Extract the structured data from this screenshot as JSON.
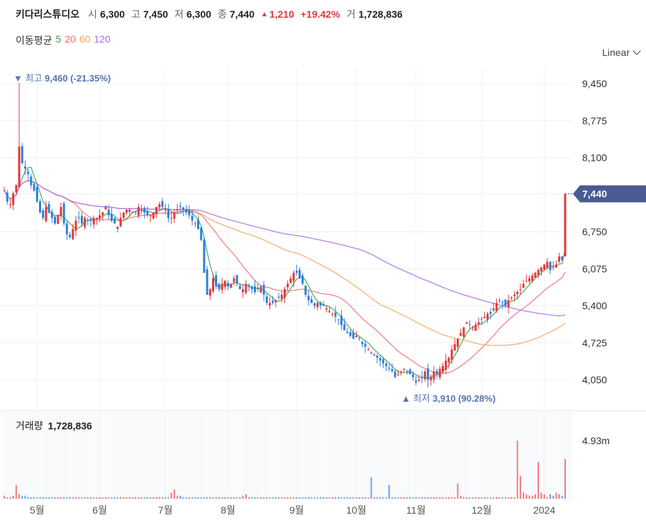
{
  "header": {
    "stock_name": "키다리스튜디오",
    "open_label": "시",
    "open_value": "6,300",
    "high_label": "고",
    "high_value": "7,450",
    "low_label": "저",
    "low_value": "6,300",
    "close_label": "종",
    "close_value": "7,440",
    "change_arrow": "▲",
    "change_value": "1,210",
    "change_pct": "+19.42%",
    "volume_label": "거",
    "volume_value": "1,728,836"
  },
  "moving_average": {
    "label": "이동평균",
    "periods": [
      {
        "value": "5",
        "color": "#3aa34a"
      },
      {
        "value": "20",
        "color": "#f06e6e"
      },
      {
        "value": "60",
        "color": "#f4a45d"
      },
      {
        "value": "120",
        "color": "#a66cf0"
      }
    ]
  },
  "scale_mode": "Linear",
  "annotations": {
    "high_text": "▼ 최고",
    "high_value": "9,460 (-21.35%)",
    "low_text": "▲ 최저",
    "low_value": "3,910 (90.28%)"
  },
  "volume_panel": {
    "label": "거래량",
    "value": "1,728,836",
    "axis_tick": "4.93m"
  },
  "colors": {
    "up": "#e0393e",
    "down": "#2f7fd8",
    "current_tag": "#4a5b94",
    "annotation": "#5a72b5"
  },
  "chart_data": {
    "type": "candlestick",
    "y_ticks": [
      "9,450",
      "8,775",
      "8,100",
      "7,440",
      "6,750",
      "6,075",
      "5,400",
      "4,725",
      "4,050"
    ],
    "y_tick_values": [
      9450,
      8775,
      8100,
      7440,
      6750,
      6075,
      5400,
      4725,
      4050
    ],
    "ylim": [
      3600,
      9800
    ],
    "x_ticks": [
      "5월",
      "6월",
      "7월",
      "8월",
      "9월",
      "10월",
      "11월",
      "12월",
      "2024"
    ],
    "x_tick_index": [
      11,
      32,
      54,
      75,
      98,
      118,
      138,
      160,
      181
    ],
    "current_price": 7440,
    "high_index": 5,
    "high_value": 9460,
    "low_index": 142,
    "low_value": 3910,
    "closes": [
      7500,
      7300,
      7250,
      7450,
      7600,
      8300,
      8000,
      7900,
      7800,
      7600,
      7500,
      7300,
      7100,
      7000,
      7200,
      7100,
      7000,
      6900,
      7050,
      7200,
      6900,
      6700,
      6650,
      6800,
      6950,
      7000,
      6900,
      7000,
      6950,
      6950,
      7000,
      7000,
      7050,
      7100,
      7200,
      7050,
      6950,
      6900,
      6800,
      7000,
      7100,
      7150,
      7150,
      7100,
      7100,
      7200,
      7150,
      7100,
      7050,
      7050,
      7100,
      7200,
      7250,
      7200,
      7150,
      7000,
      7000,
      7100,
      7150,
      7200,
      7150,
      7100,
      7050,
      6950,
      6900,
      6800,
      6600,
      6000,
      5600,
      5700,
      5900,
      5750,
      5700,
      5800,
      5850,
      5750,
      5800,
      5900,
      5800,
      5700,
      5700,
      5800,
      5750,
      5700,
      5650,
      5700,
      5750,
      5600,
      5450,
      5450,
      5450,
      5500,
      5550,
      5600,
      5700,
      5800,
      5900,
      6000,
      6000,
      5900,
      5800,
      5600,
      5500,
      5450,
      5400,
      5450,
      5400,
      5400,
      5350,
      5300,
      5250,
      5200,
      5150,
      5050,
      4950,
      4900,
      4850,
      4800,
      4850,
      4800,
      4700,
      4650,
      4600,
      4550,
      4500,
      4450,
      4400,
      4350,
      4300,
      4250,
      4200,
      4100,
      4150,
      4200,
      4250,
      4200,
      4150,
      4100,
      4000,
      4050,
      4100,
      4200,
      4050,
      4100,
      4200,
      4150,
      4250,
      4300,
      4400,
      4450,
      4600,
      4700,
      4800,
      4900,
      5000,
      5100,
      5050,
      5000,
      5050,
      5100,
      5150,
      5200,
      5250,
      5250,
      5350,
      5450,
      5500,
      5450,
      5400,
      5500,
      5550,
      5600,
      5650,
      5700,
      5800,
      5850,
      5900,
      5950,
      6000,
      6050,
      6100,
      6150,
      6200,
      6050,
      6100,
      6150,
      6300,
      6230,
      7440
    ],
    "volume_pct": [
      2,
      1,
      1,
      2,
      2,
      9,
      3,
      2,
      2,
      1,
      1,
      1,
      1,
      1,
      1,
      1,
      1,
      1,
      1,
      1,
      1,
      1,
      1,
      1,
      1,
      1,
      1,
      1,
      1,
      1,
      1,
      1,
      1,
      1,
      1,
      1,
      1,
      1,
      1,
      1,
      1,
      1,
      1,
      1,
      1,
      1,
      1,
      1,
      1,
      1,
      1,
      1,
      1,
      1,
      1,
      1,
      1,
      1,
      1,
      1,
      1,
      1,
      1,
      1,
      1,
      1,
      1,
      4,
      6,
      2,
      2,
      1,
      1,
      1,
      1,
      1,
      1,
      1,
      1,
      1,
      1,
      1,
      1,
      1,
      1,
      1,
      1,
      1,
      1,
      1,
      1,
      1,
      1,
      1,
      1,
      2,
      3,
      2,
      1,
      1,
      1,
      1,
      1,
      1,
      1,
      1,
      1,
      1,
      1,
      1,
      1,
      1,
      1,
      1,
      1,
      1,
      1,
      1,
      1,
      1,
      1,
      1,
      1,
      1,
      1,
      1,
      1,
      1,
      1,
      1,
      1,
      1,
      1,
      1,
      1,
      1,
      1,
      1,
      1,
      1,
      1,
      1,
      1,
      1,
      1,
      1,
      1,
      14,
      1,
      1,
      1,
      1,
      1,
      1,
      9,
      1,
      1,
      1,
      1,
      1,
      1,
      1,
      1,
      1,
      1,
      1,
      1,
      1,
      1,
      1,
      1,
      1,
      1,
      1,
      1,
      1,
      1,
      1,
      1,
      1,
      1,
      10,
      2,
      1,
      1,
      1,
      1,
      1,
      1,
      1,
      1,
      1,
      1,
      1,
      1,
      1,
      1,
      1,
      1,
      1,
      1,
      1,
      1,
      1,
      1,
      38,
      15,
      4,
      3,
      2,
      2,
      2,
      3,
      24,
      4,
      3,
      3,
      1,
      3,
      2,
      2,
      4,
      3,
      2,
      26
    ]
  }
}
